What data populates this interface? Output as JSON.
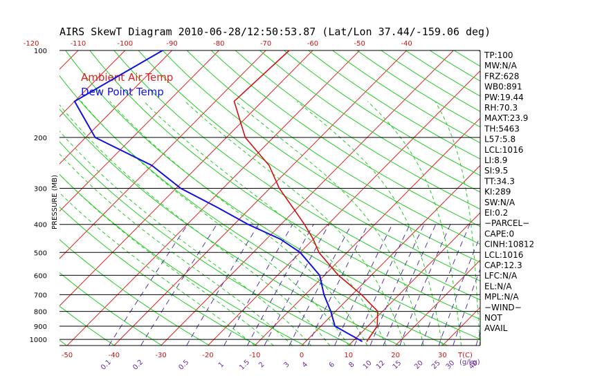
{
  "chart_data": {
    "type": "line",
    "title": "AIRS SkewT Diagram 2010-06-28/12:50:53.87 (Lat/Lon 37.44/-159.06 deg)",
    "ylabel": "PRESSURE (MB)",
    "y_scale": "log",
    "ylim": [
      1050,
      100
    ],
    "y_ticks": [
      "100",
      "200",
      "300",
      "400",
      "500",
      "600",
      "700",
      "800",
      "900",
      "1000"
    ],
    "top_temp_ticks": [
      "-120",
      "-110",
      "-100",
      "-90",
      "-80",
      "-70",
      "-60",
      "-50",
      "-40"
    ],
    "bottom_temp_ticks": [
      "-50",
      "-40",
      "-30",
      "-20",
      "-10",
      "0",
      "10",
      "20",
      "30"
    ],
    "bottom_temp_unit": "T(C)",
    "mixing_ratio_ticks": [
      "0.1",
      "0.2",
      "0.5",
      "1",
      "1.5",
      "2",
      "3",
      "4",
      "6",
      "8",
      "10",
      "12",
      "15",
      "20",
      "25",
      "30",
      "40"
    ],
    "mixing_ratio_unit": "(g/kg)",
    "grid": true,
    "legend_position": "top-left",
    "series": [
      {
        "name": "Ambient Air Temp",
        "color": "#d01010",
        "points": [
          {
            "p": 100,
            "t": -65
          },
          {
            "p": 150,
            "t": -66
          },
          {
            "p": 200,
            "t": -56
          },
          {
            "p": 250,
            "t": -45
          },
          {
            "p": 300,
            "t": -38
          },
          {
            "p": 350,
            "t": -31
          },
          {
            "p": 400,
            "t": -25
          },
          {
            "p": 450,
            "t": -20
          },
          {
            "p": 500,
            "t": -16
          },
          {
            "p": 600,
            "t": -7
          },
          {
            "p": 700,
            "t": 2
          },
          {
            "p": 800,
            "t": 9
          },
          {
            "p": 900,
            "t": 12
          },
          {
            "p": 1016,
            "t": 13
          }
        ]
      },
      {
        "name": "Dew Point Temp",
        "color": "#1010e0",
        "points": [
          {
            "p": 100,
            "t": -92
          },
          {
            "p": 150,
            "t": -100
          },
          {
            "p": 200,
            "t": -88
          },
          {
            "p": 250,
            "t": -70
          },
          {
            "p": 300,
            "t": -59
          },
          {
            "p": 350,
            "t": -47
          },
          {
            "p": 400,
            "t": -37
          },
          {
            "p": 450,
            "t": -27
          },
          {
            "p": 500,
            "t": -20
          },
          {
            "p": 600,
            "t": -11
          },
          {
            "p": 700,
            "t": -6
          },
          {
            "p": 800,
            "t": -1
          },
          {
            "p": 900,
            "t": 3
          },
          {
            "p": 1016,
            "t": 12
          }
        ]
      }
    ],
    "indices": [
      "TP:100",
      "MW:N/A",
      "FRZ:628",
      "WB0:891",
      "PW:19.44",
      "RH:70.3",
      "MAXT:23.9",
      "TH:5463",
      "L57:5.8",
      "LCL:1016",
      "LI:8.9",
      "SI:9.5",
      "TT:34.3",
      "KI:289",
      "SW:N/A",
      "EI:0.2",
      "−PARCEL−",
      "CAPE:0",
      "CINH:10812",
      "LCL:1016",
      "CAP:12.3",
      "LFC:N/A",
      "EL:N/A",
      "MPL:N/A",
      "−WIND−",
      " NOT",
      " AVAIL"
    ]
  },
  "colors": {
    "isotherm": "#e02020",
    "dry_adiabat": "#22cc22",
    "moist_adiabat": "#22cc22",
    "mixing_ratio": "#5533aa",
    "tick_red": "#cc1010",
    "mixing_ratio_label": "#6a2a9a",
    "frame": "#000000"
  }
}
